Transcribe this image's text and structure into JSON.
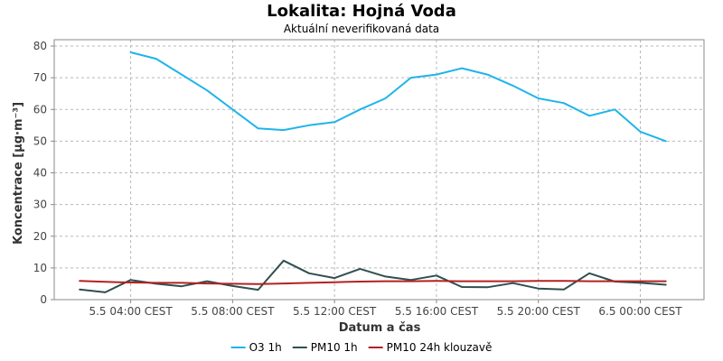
{
  "chart_data": {
    "type": "line",
    "title": "Lokalita: Hojná Voda",
    "subtitle": "Aktuální neverifikovaná data",
    "xlabel": "Datum a čas",
    "ylabel": "Koncentrace [µg·m⁻³]",
    "ylim": [
      0,
      82
    ],
    "yticks": [
      0,
      10,
      20,
      30,
      40,
      50,
      60,
      70,
      80
    ],
    "xlim_hours": [
      1,
      26.5
    ],
    "xticks": [
      {
        "hour": 4,
        "label": "5.5 04:00 CEST"
      },
      {
        "hour": 8,
        "label": "5.5 08:00 CEST"
      },
      {
        "hour": 12,
        "label": "5.5 12:00 CEST"
      },
      {
        "hour": 16,
        "label": "5.5 16:00 CEST"
      },
      {
        "hour": 20,
        "label": "5.5 20:00 CEST"
      },
      {
        "hour": 24,
        "label": "6.5 00:00 CEST"
      }
    ],
    "grid": true,
    "legend_position": "bottom",
    "series": [
      {
        "name": "O3 1h",
        "color": "#1fb4ea",
        "x": [
          4,
          5,
          6,
          7,
          8,
          9,
          10,
          11,
          12,
          13,
          14,
          15,
          16,
          17,
          18,
          19,
          20,
          21,
          22,
          23,
          24,
          25
        ],
        "values": [
          78,
          76,
          71,
          66,
          60,
          54,
          53.5,
          55,
          56,
          60,
          63.5,
          70,
          71,
          73,
          71,
          67.5,
          63.5,
          62,
          58,
          60,
          53,
          50
        ]
      },
      {
        "name": "PM10 1h",
        "color": "#2f4f4f",
        "x": [
          2,
          3,
          4,
          5,
          6,
          7,
          8,
          9,
          10,
          11,
          12,
          13,
          14,
          15,
          16,
          17,
          18,
          19,
          20,
          21,
          22,
          23,
          24,
          25
        ],
        "values": [
          3.2,
          2.3,
          6.2,
          5,
          4.2,
          5.8,
          4.3,
          3.1,
          12.3,
          8.3,
          6.8,
          9.7,
          7.3,
          6.2,
          7.6,
          4,
          3.9,
          5.2,
          3.5,
          3.2,
          8.3,
          5.7,
          5.3,
          4.7
        ]
      },
      {
        "name": "PM10 24h klouzavě",
        "color": "#b22222",
        "x": [
          2,
          3,
          4,
          5,
          6,
          7,
          8,
          9,
          10,
          11,
          12,
          13,
          14,
          15,
          16,
          17,
          18,
          19,
          20,
          21,
          22,
          23,
          24,
          25
        ],
        "values": [
          5.9,
          5.6,
          5.4,
          5.3,
          5.3,
          5.1,
          5.0,
          4.9,
          5.1,
          5.3,
          5.5,
          5.7,
          5.8,
          5.8,
          5.9,
          5.8,
          5.8,
          5.8,
          5.9,
          5.9,
          5.8,
          5.8,
          5.8,
          5.8
        ]
      }
    ]
  }
}
